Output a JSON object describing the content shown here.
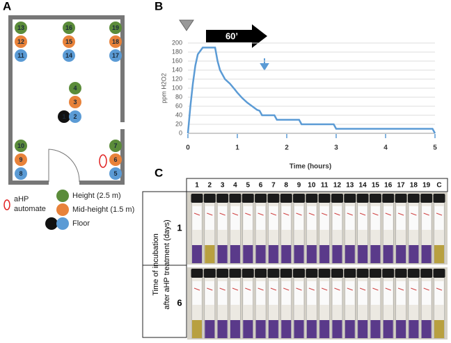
{
  "panel_labels": [
    "A",
    "B",
    "C"
  ],
  "panel_a": {
    "markers": [
      {
        "label": "13",
        "color": "#5b8c3a"
      },
      {
        "label": "16",
        "color": "#5b8c3a"
      },
      {
        "label": "19",
        "color": "#5b8c3a"
      },
      {
        "label": "12",
        "color": "#e8823a"
      },
      {
        "label": "15",
        "color": "#e8823a"
      },
      {
        "label": "18",
        "color": "#e8823a"
      },
      {
        "label": "11",
        "color": "#5b9bd5"
      },
      {
        "label": "14",
        "color": "#5b9bd5"
      },
      {
        "label": "17",
        "color": "#5b9bd5"
      },
      {
        "label": "4",
        "color": "#5b8c3a"
      },
      {
        "label": "3",
        "color": "#e8823a"
      },
      {
        "label": "1",
        "color": "#111111"
      },
      {
        "label": "2",
        "color": "#5b9bd5"
      },
      {
        "label": "10",
        "color": "#5b8c3a"
      },
      {
        "label": "9",
        "color": "#e8823a"
      },
      {
        "label": "8",
        "color": "#5b9bd5"
      },
      {
        "label": "7",
        "color": "#5b8c3a"
      },
      {
        "label": "6",
        "color": "#e8823a"
      },
      {
        "label": "5",
        "color": "#5b9bd5"
      }
    ],
    "legend": {
      "automate": [
        "aHP",
        "automate"
      ],
      "height": "Height (2.5 m)",
      "mid_height": "Mid-height (1.5 m)",
      "floor": "Floor"
    }
  },
  "chart_data": {
    "type": "line",
    "color": "#5b9bd5",
    "x": [
      0,
      0.05,
      0.1,
      0.15,
      0.2,
      0.3,
      0.55,
      0.6,
      0.65,
      0.75,
      0.85,
      0.95,
      1.0,
      1.1,
      1.2,
      1.3,
      1.4,
      1.45,
      1.5,
      1.75,
      1.8,
      2.25,
      2.3,
      2.95,
      3.0,
      4.95,
      5.0
    ],
    "values": [
      0,
      60,
      110,
      150,
      175,
      190,
      190,
      160,
      140,
      120,
      110,
      97,
      90,
      78,
      68,
      60,
      52,
      50,
      40,
      40,
      30,
      30,
      20,
      20,
      10,
      10,
      0
    ],
    "xlabel": "Time (hours)",
    "ylabel": "ppm H2O2",
    "xlim": [
      0,
      5
    ],
    "ylim": [
      0,
      200
    ],
    "xticks": [
      0,
      1,
      2,
      3,
      4,
      5
    ],
    "yticks": [
      0,
      20,
      40,
      60,
      80,
      100,
      120,
      140,
      160,
      180,
      200
    ],
    "grid": true,
    "annotation": "60’"
  },
  "panel_c": {
    "columns": [
      "1",
      "2",
      "3",
      "4",
      "5",
      "6",
      "7",
      "8",
      "9",
      "10",
      "11",
      "12",
      "13",
      "14",
      "15",
      "16",
      "17",
      "18",
      "19",
      "C"
    ],
    "rows": [
      "1",
      "6"
    ],
    "ylabel": [
      "Time of incubation",
      "after aHP treatment (days)"
    ]
  }
}
